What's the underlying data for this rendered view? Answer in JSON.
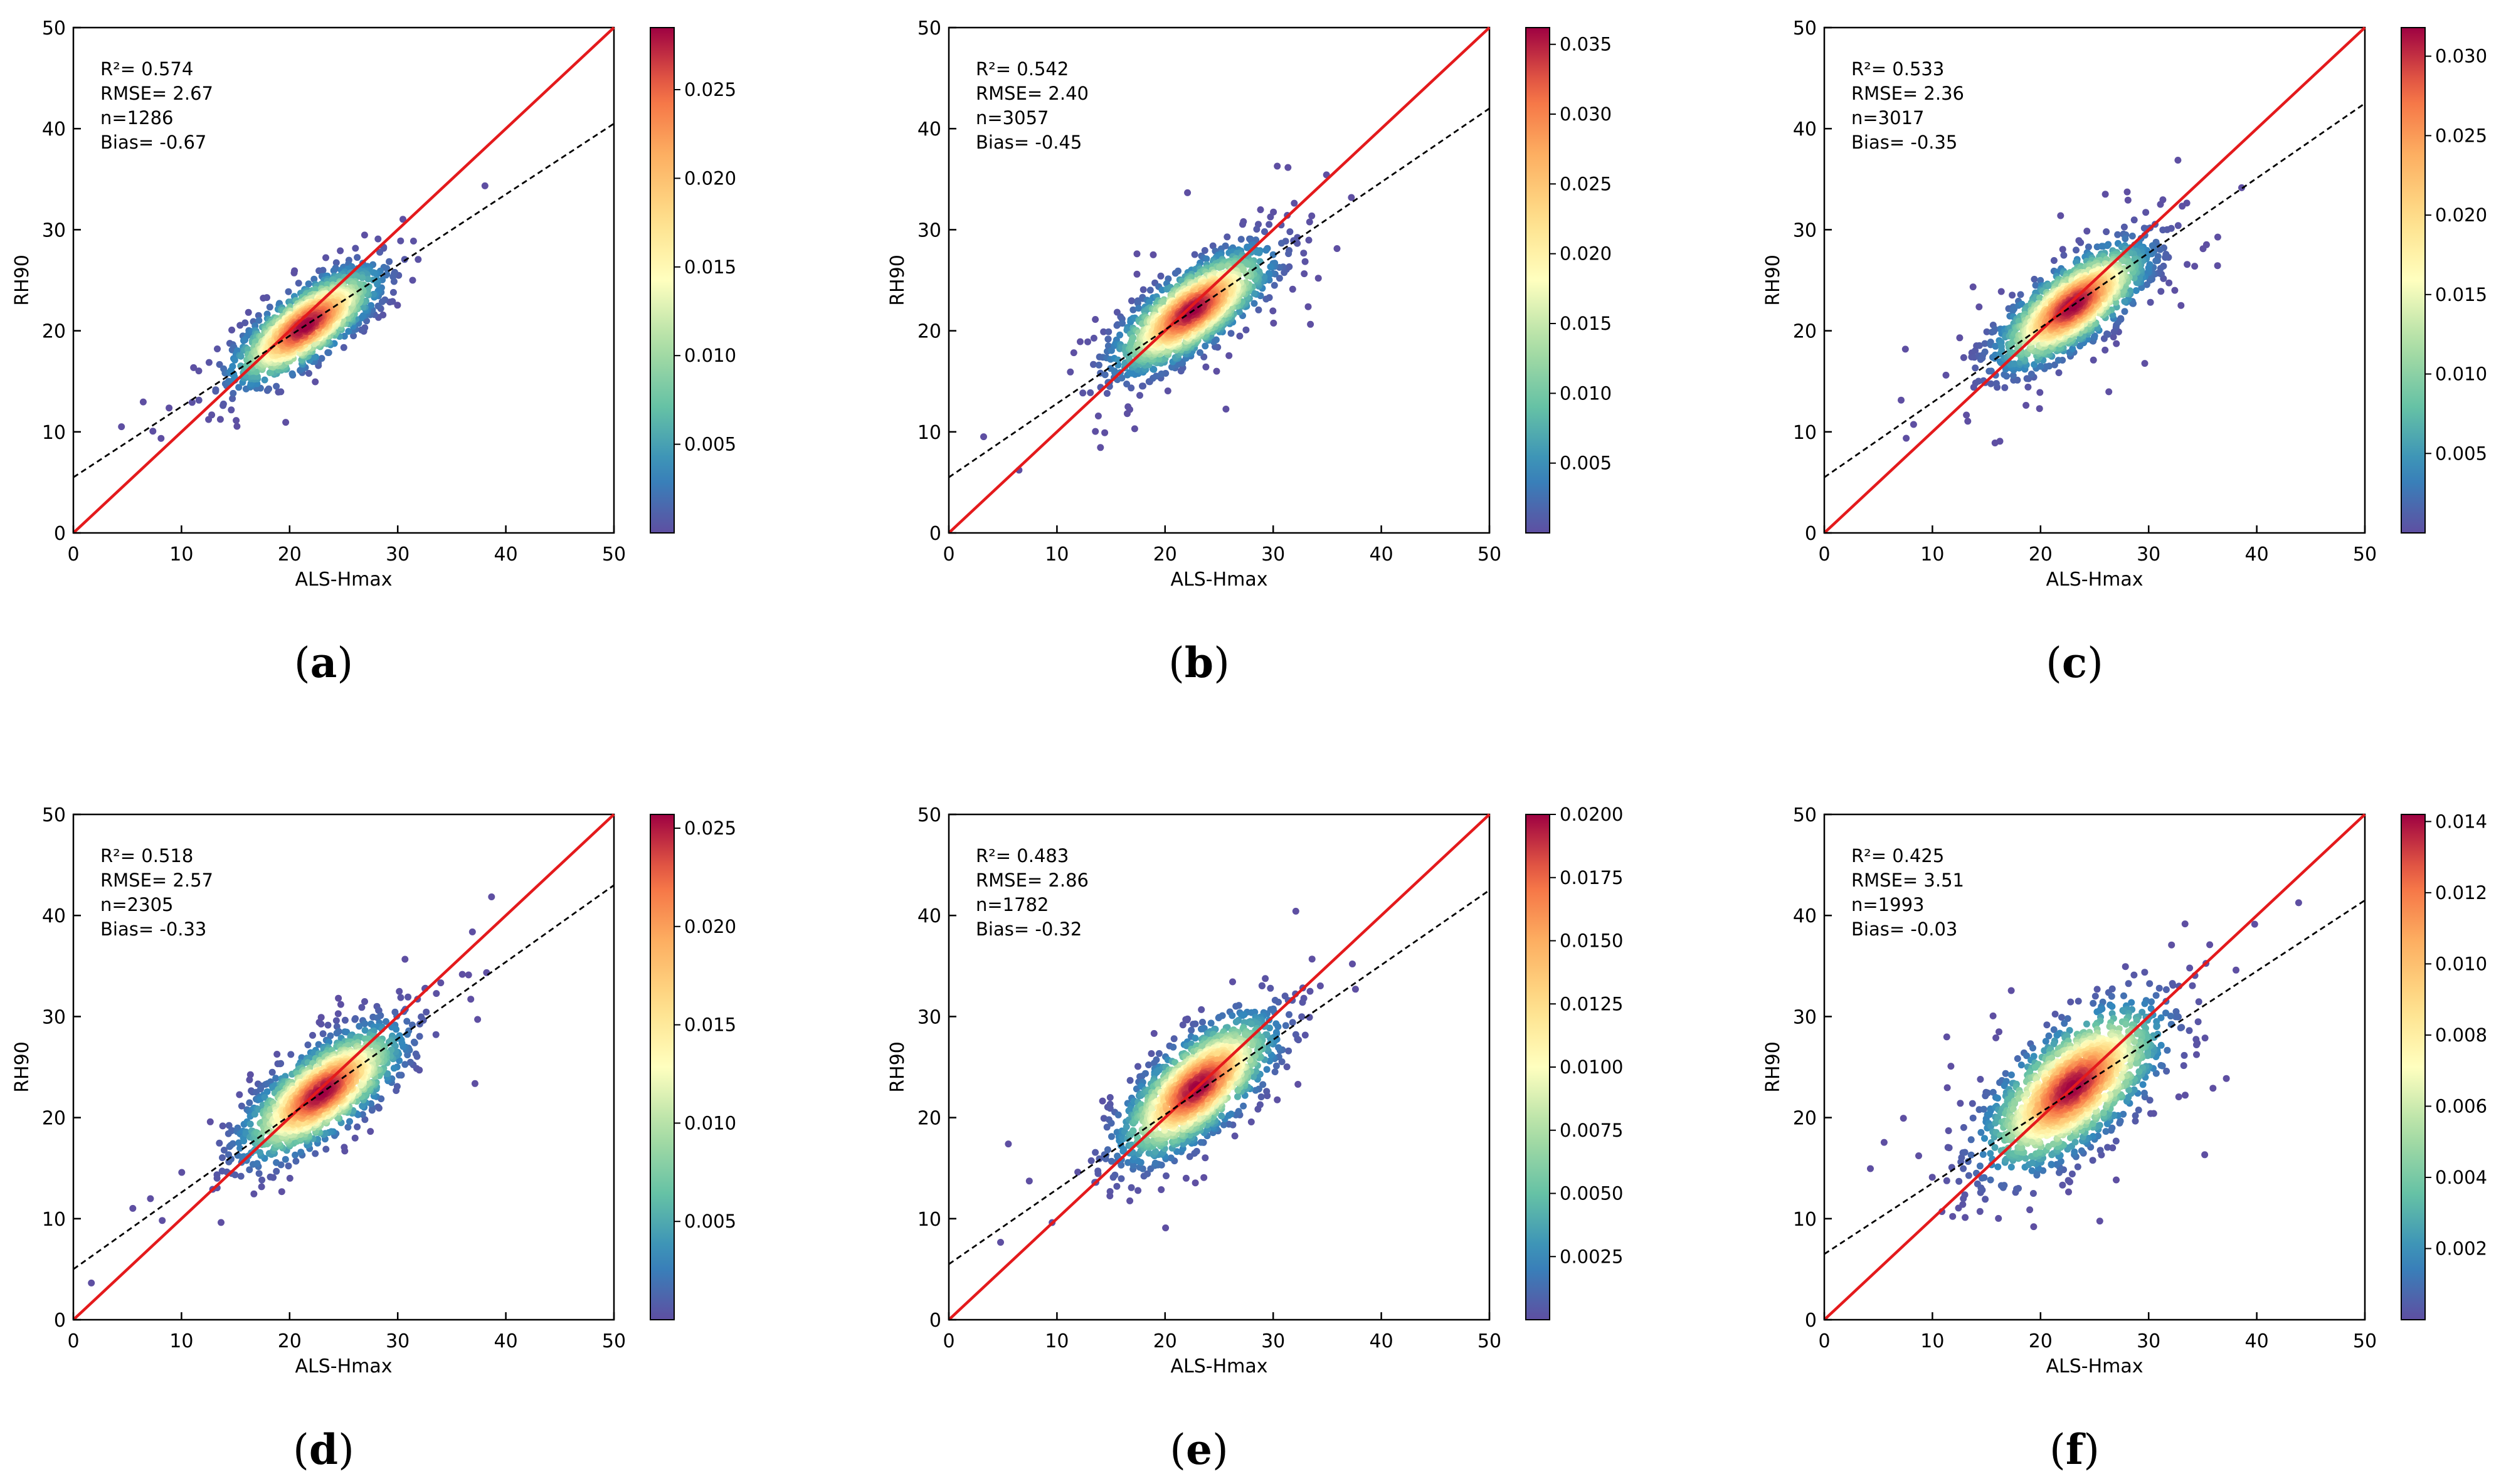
{
  "figure_title": "",
  "chart_data": [
    {
      "type": "scatter",
      "panel": "(a)",
      "panel_letter": "a",
      "xlabel": "ALS-Hmax",
      "ylabel": "RH90",
      "xlim": [
        0,
        50
      ],
      "ylim": [
        0,
        50
      ],
      "xticks": [
        0,
        10,
        20,
        30,
        40,
        50
      ],
      "yticks": [
        0,
        10,
        20,
        30,
        40,
        50
      ],
      "stats": [
        "R²= 0.574",
        "RMSE= 2.67",
        "n=1286",
        "Bias= -0.67"
      ],
      "n_points": 1286,
      "center": [
        21.5,
        20.5
      ],
      "spread": [
        3.3,
        2.8
      ],
      "corr": 0.76,
      "one_to_one_line": {
        "x": [
          0,
          50
        ],
        "y": [
          0,
          50
        ],
        "color": "#e41a1c"
      },
      "fit_line": {
        "x": [
          0,
          50
        ],
        "y": [
          5.5,
          40.5
        ],
        "style": "dashed"
      },
      "colorbar": {
        "min": 0.0,
        "max": 0.0285,
        "ticks": [
          0.005,
          0.01,
          0.015,
          0.02,
          0.025
        ],
        "labels": [
          "0.005",
          "0.010",
          "0.015",
          "0.020",
          "0.025"
        ]
      }
    },
    {
      "type": "scatter",
      "panel": "(b)",
      "panel_letter": "b",
      "xlabel": "ALS-Hmax",
      "ylabel": "RH90",
      "xlim": [
        0,
        50
      ],
      "ylim": [
        0,
        50
      ],
      "xticks": [
        0,
        10,
        20,
        30,
        40,
        50
      ],
      "yticks": [
        0,
        10,
        20,
        30,
        40,
        50
      ],
      "stats": [
        "R²= 0.542",
        "RMSE= 2.40",
        "n=3057",
        "Bias= -0.45"
      ],
      "n_points": 3057,
      "center": [
        22.5,
        22.0
      ],
      "spread": [
        3.5,
        3.0
      ],
      "corr": 0.74,
      "one_to_one_line": {
        "x": [
          0,
          50
        ],
        "y": [
          0,
          50
        ],
        "color": "#e41a1c"
      },
      "fit_line": {
        "x": [
          0,
          50
        ],
        "y": [
          5.5,
          42.0
        ],
        "style": "dashed"
      },
      "colorbar": {
        "min": 0.0,
        "max": 0.0362,
        "ticks": [
          0.005,
          0.01,
          0.015,
          0.02,
          0.025,
          0.03,
          0.035
        ],
        "labels": [
          "0.005",
          "0.010",
          "0.015",
          "0.020",
          "0.025",
          "0.030",
          "0.035"
        ]
      }
    },
    {
      "type": "scatter",
      "panel": "(c)",
      "panel_letter": "c",
      "xlabel": "ALS-Hmax",
      "ylabel": "RH90",
      "xlim": [
        0,
        50
      ],
      "ylim": [
        0,
        50
      ],
      "xticks": [
        0,
        10,
        20,
        30,
        40,
        50
      ],
      "yticks": [
        0,
        10,
        20,
        30,
        40,
        50
      ],
      "stats": [
        "R²= 0.533",
        "RMSE= 2.36",
        "n=3017",
        "Bias= -0.35"
      ],
      "n_points": 3017,
      "center": [
        23.0,
        22.5
      ],
      "spread": [
        3.4,
        3.0
      ],
      "corr": 0.73,
      "one_to_one_line": {
        "x": [
          0,
          50
        ],
        "y": [
          0,
          50
        ],
        "color": "#e41a1c"
      },
      "fit_line": {
        "x": [
          0,
          50
        ],
        "y": [
          5.5,
          42.5
        ],
        "style": "dashed"
      },
      "colorbar": {
        "min": 0.0,
        "max": 0.0318,
        "ticks": [
          0.005,
          0.01,
          0.015,
          0.02,
          0.025,
          0.03
        ],
        "labels": [
          "0.005",
          "0.010",
          "0.015",
          "0.020",
          "0.025",
          "0.030"
        ]
      }
    },
    {
      "type": "scatter",
      "panel": "(d)",
      "panel_letter": "d",
      "xlabel": "ALS-Hmax",
      "ylabel": "RH90",
      "xlim": [
        0,
        50
      ],
      "ylim": [
        0,
        50
      ],
      "xticks": [
        0,
        10,
        20,
        30,
        40,
        50
      ],
      "yticks": [
        0,
        10,
        20,
        30,
        40,
        50
      ],
      "stats": [
        "R²= 0.518",
        "RMSE= 2.57",
        "n=2305",
        "Bias= -0.33"
      ],
      "n_points": 2305,
      "center": [
        23.0,
        22.5
      ],
      "spread": [
        3.6,
        3.2
      ],
      "corr": 0.72,
      "one_to_one_line": {
        "x": [
          0,
          50
        ],
        "y": [
          0,
          50
        ],
        "color": "#e41a1c"
      },
      "fit_line": {
        "x": [
          0,
          50
        ],
        "y": [
          5.0,
          43.0
        ],
        "style": "dashed"
      },
      "colorbar": {
        "min": 0.0,
        "max": 0.0257,
        "ticks": [
          0.005,
          0.01,
          0.015,
          0.02,
          0.025
        ],
        "labels": [
          "0.005",
          "0.010",
          "0.015",
          "0.020",
          "0.025"
        ]
      }
    },
    {
      "type": "scatter",
      "panel": "(e)",
      "panel_letter": "e",
      "xlabel": "ALS-Hmax",
      "ylabel": "RH90",
      "xlim": [
        0,
        50
      ],
      "ylim": [
        0,
        50
      ],
      "xticks": [
        0,
        10,
        20,
        30,
        40,
        50
      ],
      "yticks": [
        0,
        10,
        20,
        30,
        40,
        50
      ],
      "stats": [
        "R²= 0.483",
        "RMSE= 2.86",
        "n=1782",
        "Bias= -0.32"
      ],
      "n_points": 1782,
      "center": [
        23.0,
        23.0
      ],
      "spread": [
        3.5,
        3.5
      ],
      "corr": 0.7,
      "one_to_one_line": {
        "x": [
          0,
          50
        ],
        "y": [
          0,
          50
        ],
        "color": "#e41a1c"
      },
      "fit_line": {
        "x": [
          0,
          50
        ],
        "y": [
          5.5,
          42.5
        ],
        "style": "dashed"
      },
      "colorbar": {
        "min": 0.0,
        "max": 0.02,
        "ticks": [
          0.0025,
          0.005,
          0.0075,
          0.01,
          0.0125,
          0.015,
          0.0175,
          0.02
        ],
        "labels": [
          "0.0025",
          "0.0050",
          "0.0075",
          "0.0100",
          "0.0125",
          "0.0150",
          "0.0175",
          "0.0200"
        ]
      }
    },
    {
      "type": "scatter",
      "panel": "(f)",
      "panel_letter": "f",
      "xlabel": "ALS-Hmax",
      "ylabel": "RH90",
      "xlim": [
        0,
        50
      ],
      "ylim": [
        0,
        50
      ],
      "xticks": [
        0,
        10,
        20,
        30,
        40,
        50
      ],
      "yticks": [
        0,
        10,
        20,
        30,
        40,
        50
      ],
      "stats": [
        "R²= 0.425",
        "RMSE= 3.51",
        "n=1993",
        "Bias= -0.03"
      ],
      "n_points": 1993,
      "center": [
        23.0,
        23.0
      ],
      "spread": [
        4.0,
        4.0
      ],
      "corr": 0.65,
      "one_to_one_line": {
        "x": [
          0,
          50
        ],
        "y": [
          0,
          50
        ],
        "color": "#e41a1c"
      },
      "fit_line": {
        "x": [
          0,
          50
        ],
        "y": [
          6.5,
          41.5
        ],
        "style": "dashed"
      },
      "colorbar": {
        "min": 0.0,
        "max": 0.0142,
        "ticks": [
          0.002,
          0.004,
          0.006,
          0.008,
          0.01,
          0.012,
          0.014
        ],
        "labels": [
          "0.002",
          "0.004",
          "0.006",
          "0.008",
          "0.010",
          "0.012",
          "0.014"
        ]
      }
    }
  ]
}
